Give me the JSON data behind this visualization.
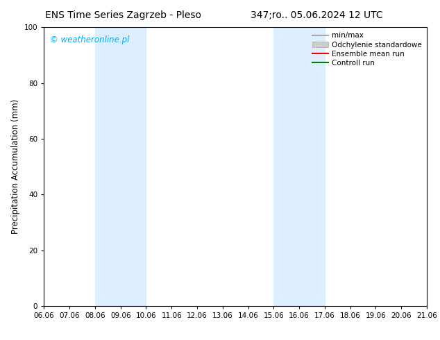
{
  "title_left": "ENS Time Series Zagrzeb - Pleso",
  "title_right": "347;ro.. 05.06.2024 12 UTC",
  "ylabel": "Precipitation Accumulation (mm)",
  "watermark": "© weatheronline.pl",
  "watermark_color": "#00aaff",
  "ylim": [
    0,
    100
  ],
  "xtick_labels": [
    "06.06",
    "07.06",
    "08.06",
    "09.06",
    "10.06",
    "11.06",
    "12.06",
    "13.06",
    "14.06",
    "15.06",
    "16.06",
    "17.06",
    "18.06",
    "19.06",
    "20.06",
    "21.06"
  ],
  "ytick_values": [
    0,
    20,
    40,
    60,
    80,
    100
  ],
  "shade_regions": [
    {
      "xstart": 2,
      "xend": 4,
      "color": "#ddeeff"
    },
    {
      "xstart": 9,
      "xend": 11,
      "color": "#ddeeff"
    }
  ],
  "legend_items": [
    {
      "label": "min/max",
      "color": "#aaaaaa",
      "type": "line",
      "lw": 1.5
    },
    {
      "label": "Odchylenie standardowe",
      "color": "#cccccc",
      "type": "fill"
    },
    {
      "label": "Ensemble mean run",
      "color": "red",
      "type": "line",
      "lw": 1.5
    },
    {
      "label": "Controll run",
      "color": "green",
      "type": "line",
      "lw": 1.5
    }
  ],
  "bg_color": "#ffffff",
  "tick_fontsize": 7.5,
  "ylabel_fontsize": 8.5,
  "title_fontsize": 10,
  "legend_fontsize": 7.5,
  "watermark_fontsize": 8.5
}
